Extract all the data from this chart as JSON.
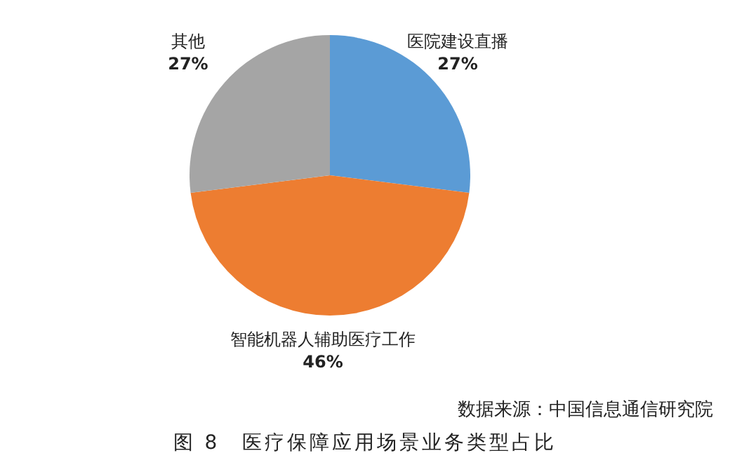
{
  "chart_data": {
    "type": "pie",
    "title": "图 8　医疗保障应用场景业务类型占比",
    "annotations": [
      "数据来源：中国信息通信研究院"
    ],
    "categories": [
      "医院建设直播",
      "智能机器人辅助医疗工作",
      "其他"
    ],
    "values": [
      27,
      46,
      27
    ],
    "colors": [
      "#5b9bd5",
      "#ed7d31",
      "#a5a5a5"
    ],
    "value_labels": [
      "27%",
      "46%",
      "27%"
    ],
    "legend": false
  }
}
